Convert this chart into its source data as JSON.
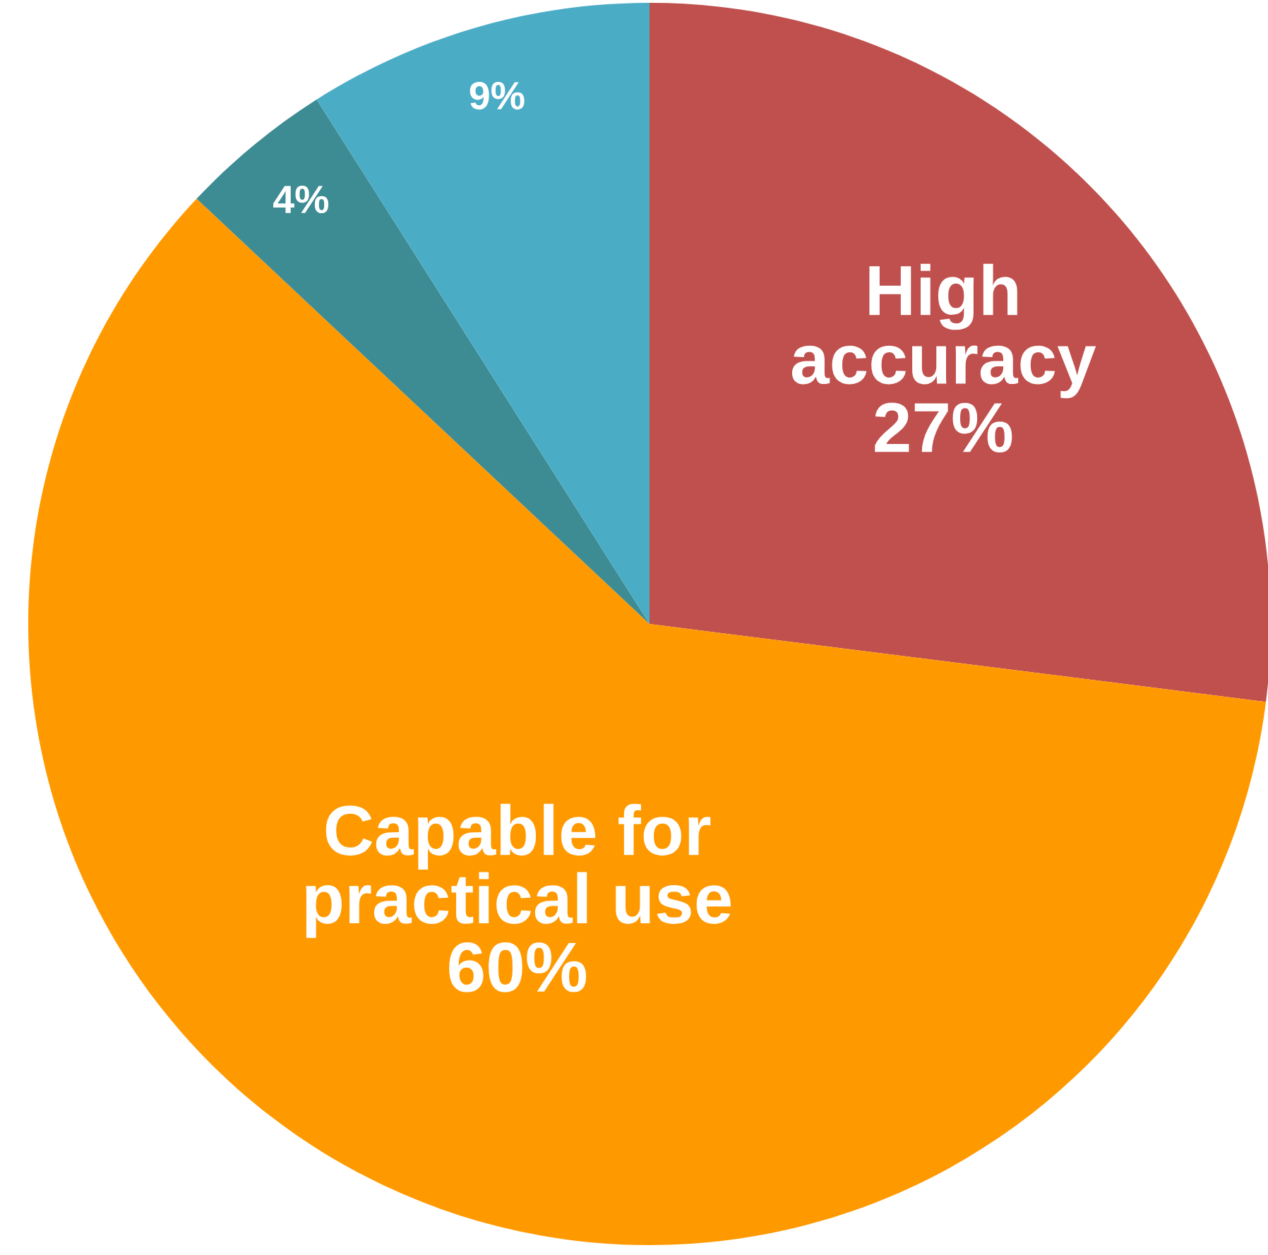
{
  "chart_data": {
    "type": "pie",
    "categories": [
      "High accuracy",
      "Capable for practical use",
      null,
      null
    ],
    "values": [
      27,
      60,
      4,
      9
    ],
    "value_labels": [
      "27%",
      "60%",
      "4%",
      "9%"
    ],
    "colors": [
      "#c0504d",
      "#ff9900",
      "#3d8b93",
      "#4bacc6"
    ],
    "legend": false
  }
}
